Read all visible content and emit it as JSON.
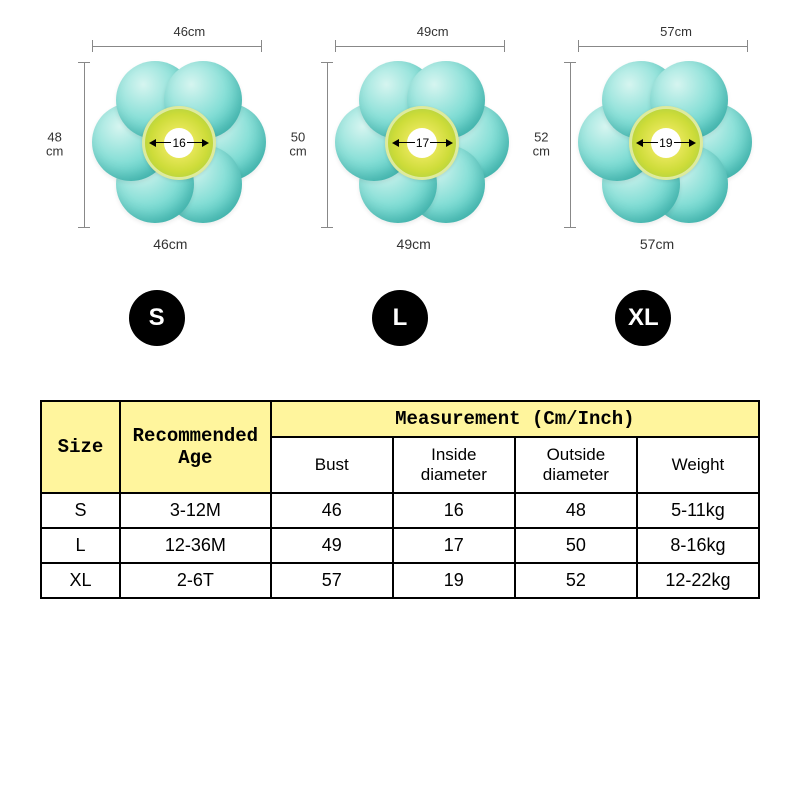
{
  "products": [
    {
      "top_width": "46cm",
      "height": "48",
      "height_unit": "cm",
      "inner": "16",
      "bottom": "46cm",
      "size": "S"
    },
    {
      "top_width": "49cm",
      "height": "50",
      "height_unit": "cm",
      "inner": "17",
      "bottom": "49cm",
      "size": "L"
    },
    {
      "top_width": "57cm",
      "height": "52",
      "height_unit": "cm",
      "inner": "19",
      "bottom": "57cm",
      "size": "XL"
    }
  ],
  "diagram_style": {
    "float_gradient": [
      "#d6f5f0",
      "#8be0d8",
      "#4fc9c1"
    ],
    "center_gradient": [
      "#fff176",
      "#cddc39",
      "#8bc34a"
    ],
    "guide_color": "#888888",
    "badge_bg": "#000000",
    "badge_fg": "#ffffff"
  },
  "table": {
    "header_bg": "#fff59d",
    "border_color": "#000000",
    "columns": {
      "size": "Size",
      "age": "Recommended Age",
      "measurement": "Measurement (Cm/Inch)",
      "bust": "Bust",
      "inside": "Inside diameter",
      "outside": "Outside diameter",
      "weight": "Weight"
    },
    "rows": [
      {
        "size": "S",
        "age": "3-12M",
        "bust": "46",
        "inside": "16",
        "outside": "48",
        "weight": "5-11kg"
      },
      {
        "size": "L",
        "age": "12-36M",
        "bust": "49",
        "inside": "17",
        "outside": "50",
        "weight": "8-16kg"
      },
      {
        "size": "XL",
        "age": "2-6T",
        "bust": "57",
        "inside": "19",
        "outside": "52",
        "weight": "12-22kg"
      }
    ]
  }
}
